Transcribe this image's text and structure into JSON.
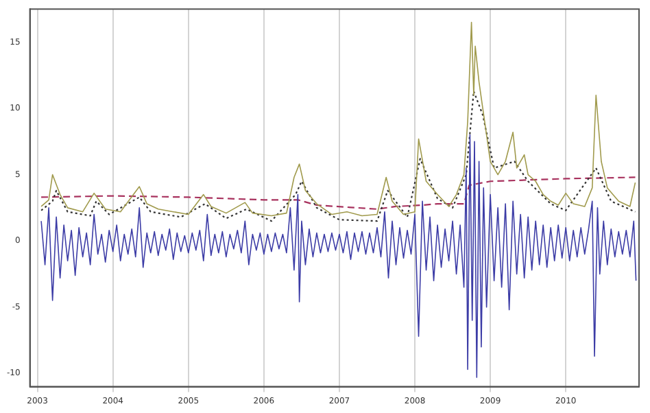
{
  "chart_data": {
    "type": "line",
    "xlim": [
      2002.9,
      2010.97
    ],
    "ylim": [
      -11,
      17.5
    ],
    "xticks": [
      2003,
      2004,
      2005,
      2006,
      2007,
      2008,
      2009,
      2010
    ],
    "yticks": [
      -10,
      -5,
      0,
      5,
      10,
      15
    ],
    "grid": "x",
    "marker": "none",
    "series": [
      {
        "color": "#3c3ca6",
        "line_style": "solid",
        "x": [
          2003.05,
          2003.1,
          2003.15,
          2003.2,
          2003.25,
          2003.3,
          2003.35,
          2003.4,
          2003.45,
          2003.5,
          2003.55,
          2003.6,
          2003.65,
          2003.7,
          2003.75,
          2003.8,
          2003.85,
          2003.9,
          2003.95,
          2004.0,
          2004.05,
          2004.1,
          2004.15,
          2004.2,
          2004.25,
          2004.3,
          2004.35,
          2004.4,
          2004.45,
          2004.5,
          2004.55,
          2004.6,
          2004.65,
          2004.7,
          2004.75,
          2004.8,
          2004.85,
          2004.9,
          2004.95,
          2005.0,
          2005.05,
          2005.1,
          2005.15,
          2005.2,
          2005.25,
          2005.3,
          2005.35,
          2005.4,
          2005.45,
          2005.5,
          2005.55,
          2005.6,
          2005.65,
          2005.7,
          2005.75,
          2005.8,
          2005.85,
          2005.9,
          2005.95,
          2006.0,
          2006.05,
          2006.1,
          2006.15,
          2006.2,
          2006.25,
          2006.3,
          2006.35,
          2006.4,
          2006.45,
          2006.47,
          2006.5,
          2006.55,
          2006.6,
          2006.65,
          2006.7,
          2006.75,
          2006.8,
          2006.85,
          2006.9,
          2006.95,
          2007.0,
          2007.05,
          2007.1,
          2007.15,
          2007.2,
          2007.25,
          2007.3,
          2007.35,
          2007.4,
          2007.45,
          2007.5,
          2007.55,
          2007.6,
          2007.65,
          2007.7,
          2007.75,
          2007.8,
          2007.85,
          2007.9,
          2007.95,
          2008.0,
          2008.05,
          2008.1,
          2008.15,
          2008.2,
          2008.25,
          2008.3,
          2008.35,
          2008.4,
          2008.45,
          2008.5,
          2008.55,
          2008.6,
          2008.65,
          2008.68,
          2008.7,
          2008.73,
          2008.76,
          2008.79,
          2008.82,
          2008.85,
          2008.88,
          2008.91,
          2008.95,
          2009.0,
          2009.05,
          2009.1,
          2009.15,
          2009.2,
          2009.25,
          2009.3,
          2009.35,
          2009.4,
          2009.45,
          2009.5,
          2009.55,
          2009.6,
          2009.65,
          2009.7,
          2009.75,
          2009.8,
          2009.85,
          2009.9,
          2009.95,
          2010.0,
          2010.05,
          2010.1,
          2010.15,
          2010.2,
          2010.25,
          2010.3,
          2010.35,
          2010.38,
          2010.42,
          2010.45,
          2010.5,
          2010.55,
          2010.6,
          2010.65,
          2010.7,
          2010.75,
          2010.8,
          2010.85,
          2010.9,
          2010.93
        ],
        "values": [
          1.5,
          -1.8,
          2.5,
          -4.5,
          1.8,
          -2.8,
          1.2,
          -1.5,
          0.8,
          -2.6,
          1.0,
          -1.2,
          0.6,
          -1.8,
          2.0,
          -1.0,
          0.5,
          -1.6,
          0.8,
          -0.8,
          1.2,
          -1.5,
          0.5,
          -1.0,
          0.9,
          -1.2,
          2.5,
          -2.0,
          0.6,
          -0.9,
          0.7,
          -1.1,
          0.5,
          -0.7,
          0.9,
          -1.4,
          0.6,
          -0.8,
          0.4,
          -0.9,
          0.6,
          -0.7,
          0.8,
          -1.5,
          2.0,
          -1.1,
          0.5,
          -0.9,
          0.7,
          -1.2,
          0.5,
          -0.6,
          0.8,
          -0.9,
          1.5,
          -1.8,
          0.5,
          -0.7,
          0.6,
          -1.0,
          0.5,
          -0.8,
          0.6,
          -0.6,
          0.5,
          -0.9,
          2.5,
          -2.2,
          3.5,
          -4.6,
          1.5,
          -1.8,
          0.9,
          -1.2,
          0.6,
          -0.9,
          0.5,
          -0.8,
          0.6,
          -0.7,
          0.5,
          -0.9,
          0.7,
          -1.4,
          0.6,
          -0.8,
          0.7,
          -1.0,
          0.6,
          -0.9,
          1.0,
          -1.2,
          2.2,
          -2.8,
          1.5,
          -1.8,
          1.0,
          -1.3,
          0.8,
          -1.0,
          2.0,
          -7.2,
          3.0,
          -2.2,
          1.8,
          -3.0,
          1.2,
          -2.0,
          0.9,
          -1.5,
          1.5,
          -2.5,
          1.2,
          -3.5,
          5.5,
          -9.7,
          8.0,
          -6.0,
          7.5,
          -10.3,
          6.0,
          -8.0,
          4.0,
          -5.0,
          3.5,
          -3.0,
          2.5,
          -3.5,
          2.8,
          -5.2,
          3.0,
          -2.5,
          2.0,
          -2.8,
          1.8,
          -2.2,
          1.5,
          -1.8,
          1.2,
          -2.0,
          1.0,
          -1.5,
          1.2,
          -1.3,
          1.0,
          -1.5,
          0.8,
          -1.2,
          1.0,
          -1.0,
          0.8,
          3.0,
          -8.7,
          2.5,
          -2.5,
          1.5,
          -1.8,
          0.9,
          -1.2,
          0.7,
          -1.0,
          0.8,
          -1.2,
          1.5,
          -3.0
        ]
      },
      {
        "color": "#a09a4c",
        "line_style": "solid",
        "x": [
          2003.05,
          2003.15,
          2003.2,
          2003.3,
          2003.4,
          2003.6,
          2003.75,
          2003.9,
          2004.1,
          2004.35,
          2004.45,
          2004.6,
          2004.8,
          2005.0,
          2005.2,
          2005.3,
          2005.5,
          2005.75,
          2005.85,
          2006.1,
          2006.3,
          2006.4,
          2006.47,
          2006.55,
          2006.7,
          2006.9,
          2007.1,
          2007.3,
          2007.5,
          2007.62,
          2007.7,
          2007.85,
          2008.0,
          2008.05,
          2008.15,
          2008.3,
          2008.45,
          2008.55,
          2008.65,
          2008.7,
          2008.75,
          2008.78,
          2008.8,
          2008.85,
          2008.9,
          2009.0,
          2009.1,
          2009.2,
          2009.3,
          2009.35,
          2009.45,
          2009.5,
          2009.6,
          2009.7,
          2009.8,
          2009.9,
          2010.0,
          2010.1,
          2010.25,
          2010.35,
          2010.4,
          2010.47,
          2010.55,
          2010.7,
          2010.85,
          2010.92
        ],
        "values": [
          2.6,
          3.1,
          5.0,
          3.5,
          2.5,
          2.2,
          3.6,
          2.4,
          2.2,
          4.1,
          2.8,
          2.4,
          2.2,
          2.0,
          3.5,
          2.6,
          2.1,
          2.9,
          2.1,
          1.9,
          2.1,
          4.8,
          5.8,
          3.8,
          2.8,
          2.0,
          2.2,
          1.9,
          2.0,
          4.8,
          3.0,
          2.0,
          2.2,
          7.7,
          4.5,
          3.5,
          2.6,
          3.5,
          5.0,
          9.0,
          16.5,
          11.0,
          14.7,
          12.0,
          10.0,
          6.0,
          5.0,
          6.0,
          8.2,
          5.5,
          6.5,
          5.0,
          4.5,
          3.5,
          3.0,
          2.7,
          3.6,
          2.8,
          2.6,
          4.0,
          11.0,
          6.0,
          4.0,
          3.0,
          2.6,
          4.4
        ]
      },
      {
        "color": "#333333",
        "line_style": "dotted",
        "x": [
          2003.05,
          2003.2,
          2003.25,
          2003.4,
          2003.7,
          2003.78,
          2003.95,
          2004.35,
          2004.5,
          2004.9,
          2005.22,
          2005.5,
          2005.77,
          2006.1,
          2006.42,
          2006.5,
          2006.7,
          2007.0,
          2007.5,
          2007.64,
          2007.9,
          2008.07,
          2008.3,
          2008.5,
          2008.68,
          2008.78,
          2008.9,
          2009.05,
          2009.32,
          2009.5,
          2009.8,
          2010.0,
          2010.4,
          2010.6,
          2010.92
        ],
        "values": [
          2.3,
          3.0,
          3.8,
          2.2,
          1.9,
          3.0,
          2.0,
          3.3,
          2.2,
          1.8,
          2.8,
          1.7,
          2.4,
          1.5,
          3.5,
          4.5,
          2.5,
          1.6,
          1.5,
          3.8,
          1.8,
          6.2,
          3.2,
          2.5,
          5.0,
          11.3,
          9.5,
          5.5,
          6.0,
          4.5,
          2.8,
          2.3,
          5.5,
          3.0,
          2.2
        ]
      },
      {
        "color": "#a8325e",
        "line_style": "dashed",
        "x": [
          2003.05,
          2004.0,
          2005.0,
          2006.0,
          2006.45,
          2006.7,
          2007.5,
          2007.75,
          2008.1,
          2008.3,
          2008.65,
          2008.72,
          2009.0,
          2009.5,
          2010.0,
          2010.92
        ],
        "values": [
          3.3,
          3.4,
          3.3,
          3.1,
          3.1,
          2.7,
          2.4,
          2.6,
          2.7,
          2.8,
          2.8,
          4.2,
          4.5,
          4.6,
          4.7,
          4.8
        ]
      }
    ]
  }
}
